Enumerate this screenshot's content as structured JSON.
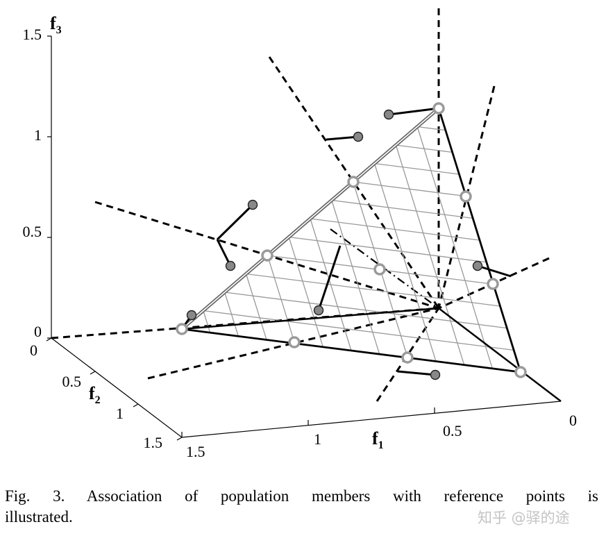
{
  "figure": {
    "axes": {
      "f3": {
        "name": "f",
        "sub": "3",
        "ticks": [
          "1.5",
          "1",
          "0.5",
          "0"
        ]
      },
      "f2": {
        "name": "f",
        "sub": "2",
        "ticks": [
          "0",
          "0.5",
          "1",
          "1.5"
        ]
      },
      "f1": {
        "name": "f",
        "sub": "1",
        "ticks": [
          "1.5",
          "1",
          "0.5",
          "0"
        ]
      }
    },
    "colors": {
      "mesh": "#999999",
      "ref_ring": "#9a9a9a",
      "member_fill": "#888888",
      "ink": "#000000"
    }
  },
  "caption": {
    "line1": "Fig. 3.  Association of population members with reference points is",
    "line2": "illustrated."
  },
  "watermark": "知乎 @驿的途"
}
